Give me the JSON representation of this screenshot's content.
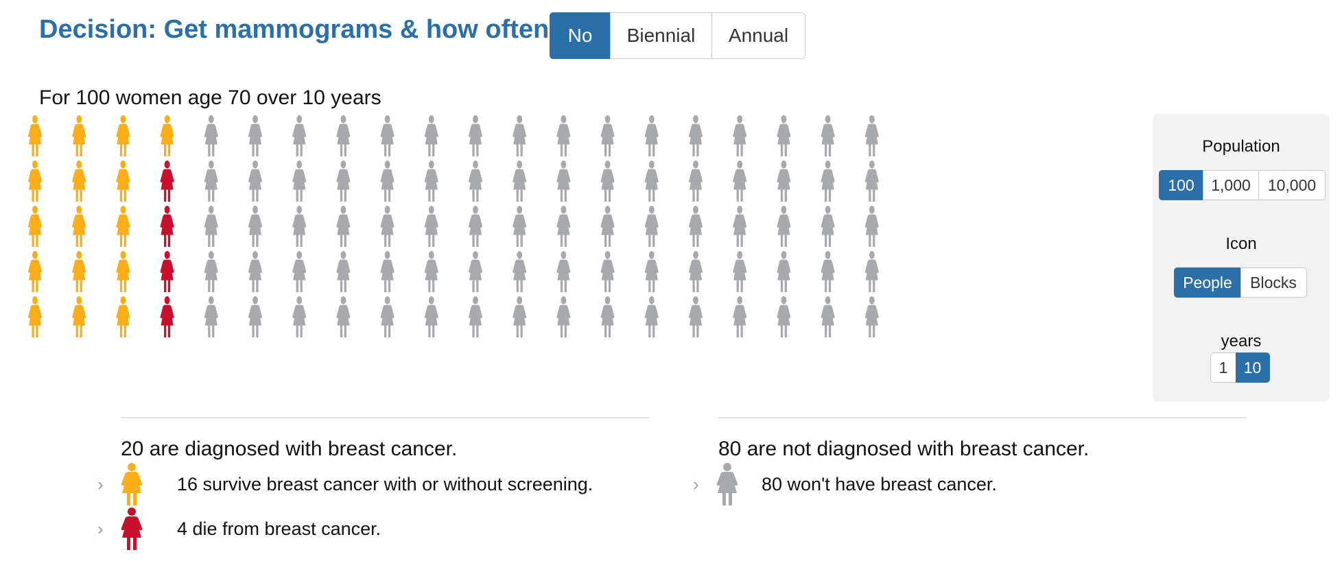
{
  "header": {
    "title": "Decision: Get mammograms & how often?",
    "options": [
      {
        "label": "No",
        "active": true
      },
      {
        "label": "Biennial",
        "active": false
      },
      {
        "label": "Annual",
        "active": false
      }
    ]
  },
  "subtitle": "For 100 women age 70 over 10 years",
  "grid": {
    "columns": 20,
    "rows": 5,
    "total": 100,
    "survive_count": 16,
    "die_count": 4,
    "not_diagnosed_count": 80,
    "colors": {
      "survive": "#fbae17",
      "die": "#c8102e",
      "none": "#a7a9ac"
    }
  },
  "panel": {
    "population": {
      "label": "Population",
      "options": [
        "100",
        "1,000",
        "10,000"
      ],
      "selected": "100"
    },
    "icon": {
      "label": "Icon",
      "options": [
        "People",
        "Blocks"
      ],
      "selected": "People"
    },
    "years": {
      "label": "years",
      "options": [
        "1",
        "10"
      ],
      "selected": "10"
    }
  },
  "summary": {
    "diagnosed": {
      "heading": "20 are diagnosed with breast cancer.",
      "items": [
        {
          "text": "16 survive breast cancer with or without screening.",
          "icon": "person-orange-icon"
        },
        {
          "text": "4 die from breast cancer.",
          "icon": "person-red-icon"
        }
      ]
    },
    "not_diagnosed": {
      "heading": "80 are not diagnosed with breast cancer.",
      "items": [
        {
          "text": "80 won't have breast cancer.",
          "icon": "person-gray-icon"
        }
      ]
    }
  }
}
